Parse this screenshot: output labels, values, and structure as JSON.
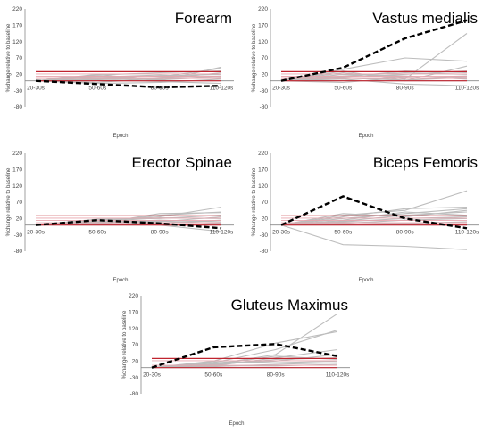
{
  "chart_data": [
    {
      "type": "line",
      "title": "Forearm",
      "xlabel": "Epoch",
      "ylabel": "%change relative to baseline",
      "categories": [
        "20-30s",
        "50-60s",
        "80-90s",
        "110-120s"
      ],
      "yticks": [
        220,
        170,
        120,
        70,
        20,
        -30,
        -80
      ],
      "ylim": [
        -80,
        220
      ],
      "reference_lines": [
        28,
        0
      ],
      "individual_series": [
        [
          0,
          20,
          0,
          42
        ],
        [
          0,
          15,
          12,
          38
        ],
        [
          0,
          10,
          5,
          25
        ],
        [
          0,
          5,
          15,
          20
        ],
        [
          0,
          -5,
          8,
          15
        ],
        [
          0,
          12,
          18,
          10
        ],
        [
          0,
          -8,
          -5,
          5
        ],
        [
          0,
          3,
          -2,
          -8
        ],
        [
          0,
          18,
          25,
          30
        ],
        [
          0,
          6,
          3,
          12
        ]
      ],
      "mean_series": [
        0,
        -10,
        -20,
        -15
      ]
    },
    {
      "type": "line",
      "title": "Vastus medialis",
      "xlabel": "Epoch",
      "ylabel": "%change relative to baseline",
      "categories": [
        "20-30s",
        "50-60s",
        "80-90s",
        "110-120s"
      ],
      "yticks": [
        220,
        170,
        120,
        70,
        20,
        -30,
        -80
      ],
      "ylim": [
        -80,
        220
      ],
      "reference_lines": [
        28,
        0
      ],
      "individual_series": [
        [
          0,
          25,
          5,
          145
        ],
        [
          0,
          35,
          70,
          60
        ],
        [
          0,
          30,
          0,
          45
        ],
        [
          0,
          15,
          25,
          20
        ],
        [
          0,
          10,
          20,
          30
        ],
        [
          0,
          -5,
          10,
          15
        ],
        [
          0,
          20,
          15,
          5
        ],
        [
          0,
          5,
          -10,
          -15
        ],
        [
          0,
          12,
          30,
          25
        ],
        [
          0,
          8,
          2,
          10
        ]
      ],
      "mean_series": [
        0,
        40,
        130,
        185
      ]
    },
    {
      "type": "line",
      "title": "Erector Spinae",
      "xlabel": "Epoch",
      "ylabel": "%change relative to baseline",
      "categories": [
        "20-30s",
        "50-60s",
        "80-90s",
        "110-120s"
      ],
      "yticks": [
        220,
        170,
        120,
        70,
        20,
        -30,
        -80
      ],
      "ylim": [
        -80,
        220
      ],
      "reference_lines": [
        28,
        0
      ],
      "individual_series": [
        [
          0,
          15,
          25,
          55
        ],
        [
          0,
          10,
          30,
          40
        ],
        [
          0,
          5,
          35,
          38
        ],
        [
          0,
          12,
          10,
          25
        ],
        [
          0,
          8,
          15,
          10
        ],
        [
          0,
          5,
          0,
          -20
        ],
        [
          0,
          18,
          20,
          30
        ],
        [
          0,
          3,
          5,
          15
        ],
        [
          0,
          10,
          22,
          20
        ],
        [
          0,
          6,
          12,
          5
        ]
      ],
      "mean_series": [
        0,
        15,
        5,
        -10
      ]
    },
    {
      "type": "line",
      "title": "Biceps Femoris",
      "xlabel": "Epoch",
      "ylabel": "%change relative to baseline",
      "categories": [
        "20-30s",
        "50-60s",
        "80-90s",
        "110-120s"
      ],
      "yticks": [
        220,
        170,
        120,
        70,
        20,
        -30,
        -80
      ],
      "ylim": [
        -80,
        220
      ],
      "reference_lines": [
        28,
        0
      ],
      "individual_series": [
        [
          0,
          -60,
          -65,
          -75
        ],
        [
          0,
          25,
          50,
          55
        ],
        [
          0,
          30,
          45,
          105
        ],
        [
          0,
          20,
          35,
          50
        ],
        [
          0,
          35,
          25,
          45
        ],
        [
          0,
          15,
          40,
          30
        ],
        [
          0,
          10,
          20,
          25
        ],
        [
          0,
          5,
          15,
          20
        ],
        [
          0,
          12,
          30,
          40
        ],
        [
          0,
          8,
          5,
          10
        ]
      ],
      "mean_series": [
        0,
        88,
        20,
        -10
      ]
    },
    {
      "type": "line",
      "title": "Gluteus Maximus",
      "xlabel": "Epoch",
      "ylabel": "%change relative to baseline",
      "categories": [
        "20-30s",
        "50-60s",
        "80-90s",
        "110-120s"
      ],
      "yticks": [
        220,
        170,
        120,
        70,
        20,
        -30,
        -80
      ],
      "ylim": [
        -80,
        220
      ],
      "reference_lines": [
        28,
        0
      ],
      "individual_series": [
        [
          0,
          10,
          40,
          165
        ],
        [
          0,
          15,
          55,
          115
        ],
        [
          0,
          20,
          75,
          110
        ],
        [
          0,
          5,
          30,
          55
        ],
        [
          0,
          12,
          20,
          40
        ],
        [
          0,
          8,
          25,
          30
        ],
        [
          0,
          18,
          15,
          20
        ],
        [
          0,
          3,
          10,
          15
        ],
        [
          0,
          10,
          35,
          25
        ],
        [
          0,
          6,
          5,
          10
        ]
      ],
      "mean_series": [
        0,
        62,
        72,
        35
      ]
    }
  ]
}
